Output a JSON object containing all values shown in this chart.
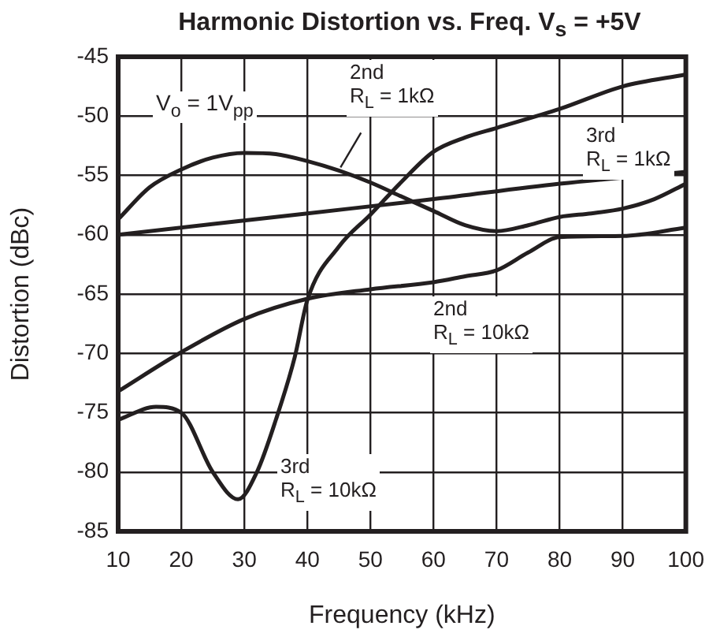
{
  "chart_data": {
    "type": "line",
    "title": "Harmonic Distortion vs. Freq. V$_{s}$ = +5V",
    "xlabel": "Frequency (kHz)",
    "ylabel": "Distortion (dBc)",
    "xlim": [
      10,
      100
    ],
    "xticks": [
      10,
      20,
      30,
      40,
      50,
      60,
      70,
      80,
      90,
      100
    ],
    "ylim": [
      -85,
      -45
    ],
    "yticks": [
      -85,
      -80,
      -75,
      -70,
      -65,
      -60,
      -55,
      -50,
      -45
    ],
    "grid": true,
    "legend": false,
    "marker": "none",
    "line_style": "solid",
    "annotations": [
      "V$_{o}$ = 1V$_{pp}$"
    ],
    "series": [
      {
        "name": "2nd R$_{L}$ = 1kΩ",
        "color": "#231f20",
        "x": [
          10,
          15,
          20,
          25,
          30,
          35,
          40,
          45,
          50,
          55,
          60,
          65,
          70,
          75,
          80,
          85,
          90,
          95,
          100
        ],
        "values": [
          -58.7,
          -56,
          -54.5,
          -53.5,
          -53.1,
          -53.2,
          -53.8,
          -54.6,
          -55.6,
          -56.8,
          -58,
          -59.2,
          -59.7,
          -59.2,
          -58.5,
          -58.2,
          -57.8,
          -57,
          -55.7
        ]
      },
      {
        "name": "3rd R$_{L}$ = 1kΩ",
        "color": "#231f20",
        "x": [
          10,
          40,
          60,
          80,
          100
        ],
        "values": [
          -60,
          -58.2,
          -57,
          -55.7,
          -54.7
        ]
      },
      {
        "name": "2nd R$_{L}$ = 10kΩ",
        "color": "#231f20",
        "x": [
          10,
          20,
          30,
          40,
          50,
          60,
          65,
          70,
          75,
          80,
          90,
          100
        ],
        "values": [
          -73.2,
          -69.9,
          -67.1,
          -65.4,
          -64.6,
          -64,
          -63.5,
          -63,
          -61.5,
          -60.2,
          -60.1,
          -59.4
        ]
      },
      {
        "name": "3rd R$_{L}$ = 10kΩ",
        "color": "#231f20",
        "x": [
          10,
          16,
          20,
          25,
          29,
          32,
          35,
          38,
          40,
          45,
          50,
          55,
          60,
          65,
          70,
          80,
          90,
          100
        ],
        "values": [
          -75.6,
          -74.5,
          -75,
          -80,
          -82.3,
          -80,
          -75.6,
          -70.3,
          -65.5,
          -61,
          -58.3,
          -55.5,
          -53,
          -51.8,
          -51,
          -49.4,
          -47.5,
          -46.5
        ]
      }
    ]
  }
}
